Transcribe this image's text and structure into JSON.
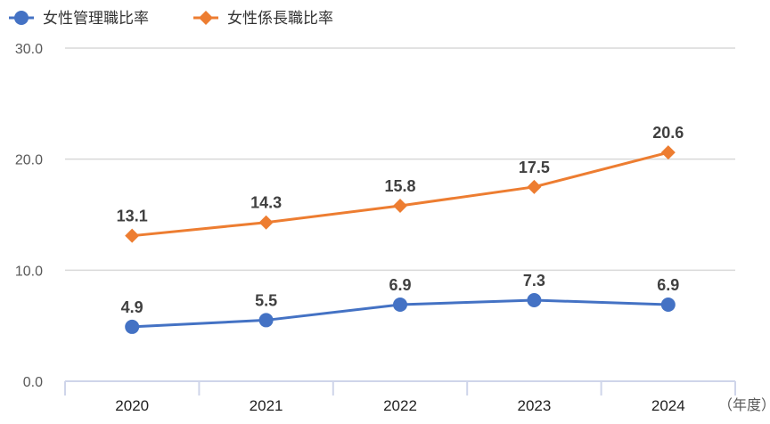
{
  "chart_data": {
    "type": "line",
    "categories": [
      "2020",
      "2021",
      "2022",
      "2023",
      "2024"
    ],
    "x_unit": "（年度）",
    "ylim": [
      0,
      30
    ],
    "yticks": [
      "0.0",
      "10.0",
      "20.0",
      "30.0"
    ],
    "grid": true,
    "legend_position": "top-left",
    "series": [
      {
        "name": "女性管理職比率",
        "values": [
          4.9,
          5.5,
          6.9,
          7.3,
          6.9
        ],
        "labels": [
          "4.9",
          "5.5",
          "6.9",
          "7.3",
          "6.9"
        ],
        "color": "#4472C4",
        "marker": "circle"
      },
      {
        "name": "女性係長職比率",
        "values": [
          13.1,
          14.3,
          15.8,
          17.5,
          20.6
        ],
        "labels": [
          "13.1",
          "14.3",
          "15.8",
          "17.5",
          "20.6"
        ],
        "color": "#ED7D31",
        "marker": "diamond"
      }
    ]
  }
}
